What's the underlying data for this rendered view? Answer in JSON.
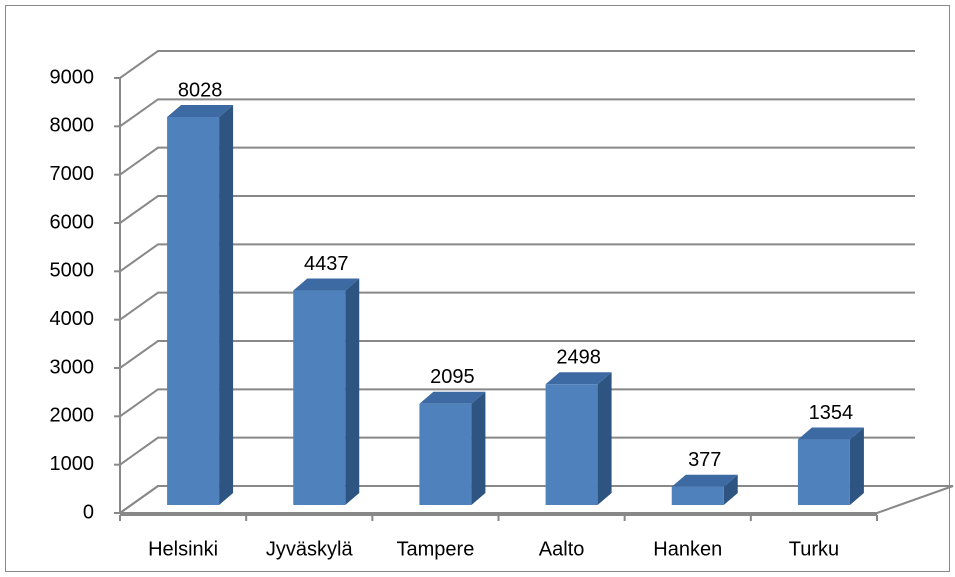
{
  "chart_data": {
    "type": "bar3d",
    "categories": [
      "Helsinki",
      "Jyväskylä",
      "Tampere",
      "Aalto",
      "Hanken",
      "Turku"
    ],
    "values": [
      8028,
      4437,
      2095,
      2498,
      377,
      1354
    ],
    "color": "#4f81bd",
    "ylim": [
      0,
      9000
    ],
    "yticks": [
      0,
      1000,
      2000,
      3000,
      4000,
      5000,
      6000,
      7000,
      8000,
      9000
    ],
    "grid": true
  }
}
